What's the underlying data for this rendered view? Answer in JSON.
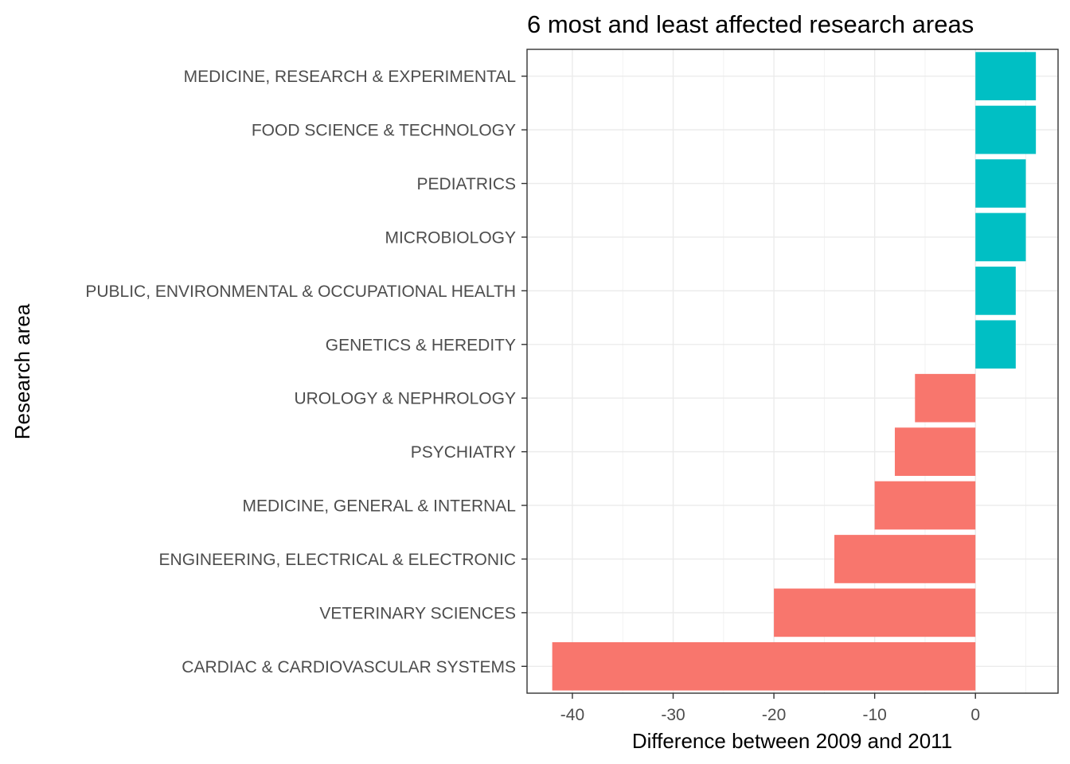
{
  "chart_data": {
    "type": "bar",
    "orientation": "horizontal",
    "title": "6 most and least affected research areas",
    "xlabel": "Difference between 2009 and 2011",
    "ylabel": "Research area",
    "xlim": [
      -44.5,
      8.2
    ],
    "xticks": [
      -40,
      -30,
      -20,
      -10,
      0
    ],
    "xtick_labels": [
      "-40",
      "-30",
      "-20",
      "-10",
      "0"
    ],
    "grid": true,
    "legend": "none",
    "categories": [
      "MEDICINE, RESEARCH & EXPERIMENTAL",
      "FOOD SCIENCE & TECHNOLOGY",
      "PEDIATRICS",
      "MICROBIOLOGY",
      "PUBLIC, ENVIRONMENTAL & OCCUPATIONAL HEALTH",
      "GENETICS & HEREDITY",
      "UROLOGY & NEPHROLOGY",
      "PSYCHIATRY",
      "MEDICINE, GENERAL & INTERNAL",
      "ENGINEERING, ELECTRICAL & ELECTRONIC",
      "VETERINARY SCIENCES",
      "CARDIAC & CARDIOVASCULAR SYSTEMS"
    ],
    "values": [
      6,
      6,
      5,
      5,
      4,
      4,
      -6,
      -8,
      -10,
      -14,
      -20,
      -42
    ],
    "colors": {
      "positive": "#00BFC4",
      "negative": "#F8766D"
    }
  }
}
